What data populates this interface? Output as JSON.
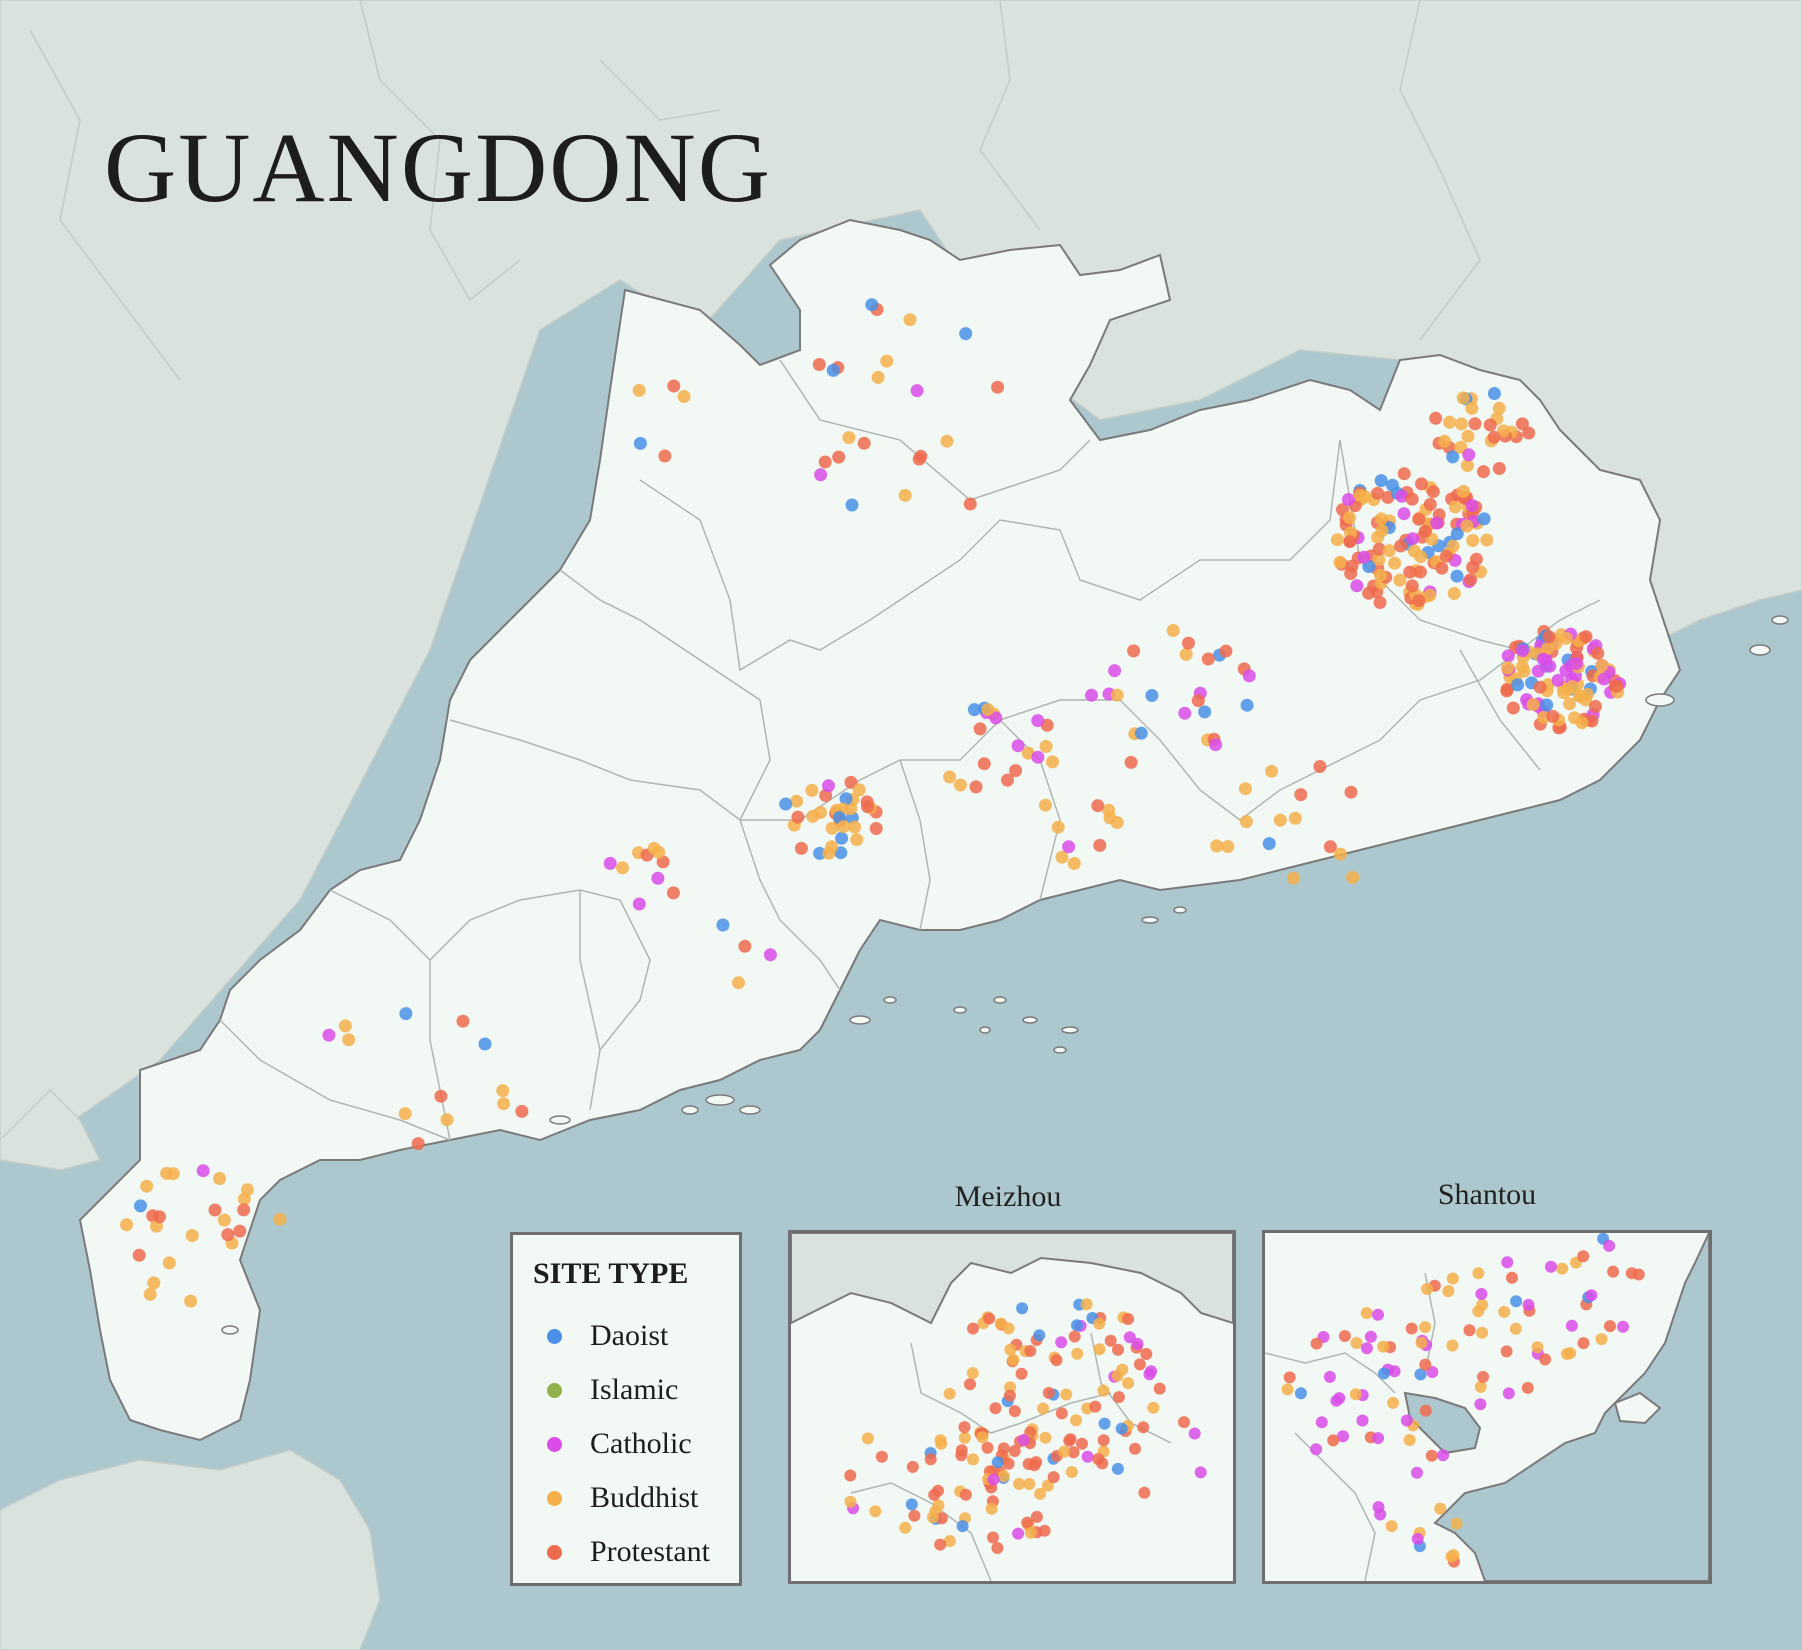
{
  "title": "GUANGDONG",
  "legend": {
    "title": "SITE TYPE",
    "items": [
      {
        "label": "Daoist",
        "color": "#4a90e8"
      },
      {
        "label": "Islamic",
        "color": "#8fb04a"
      },
      {
        "label": "Catholic",
        "color": "#d94ce8"
      },
      {
        "label": "Buddhist",
        "color": "#f5b04a"
      },
      {
        "label": "Protestant",
        "color": "#ef6b4e"
      }
    ]
  },
  "insets": [
    {
      "title": "Meizhou"
    },
    {
      "title": "Shantou"
    }
  ],
  "colors": {
    "sea": "#adc7cf",
    "land_other": "#d9e2dc",
    "province": "#f2f8f3",
    "boundary": "#7a7a7a"
  }
}
